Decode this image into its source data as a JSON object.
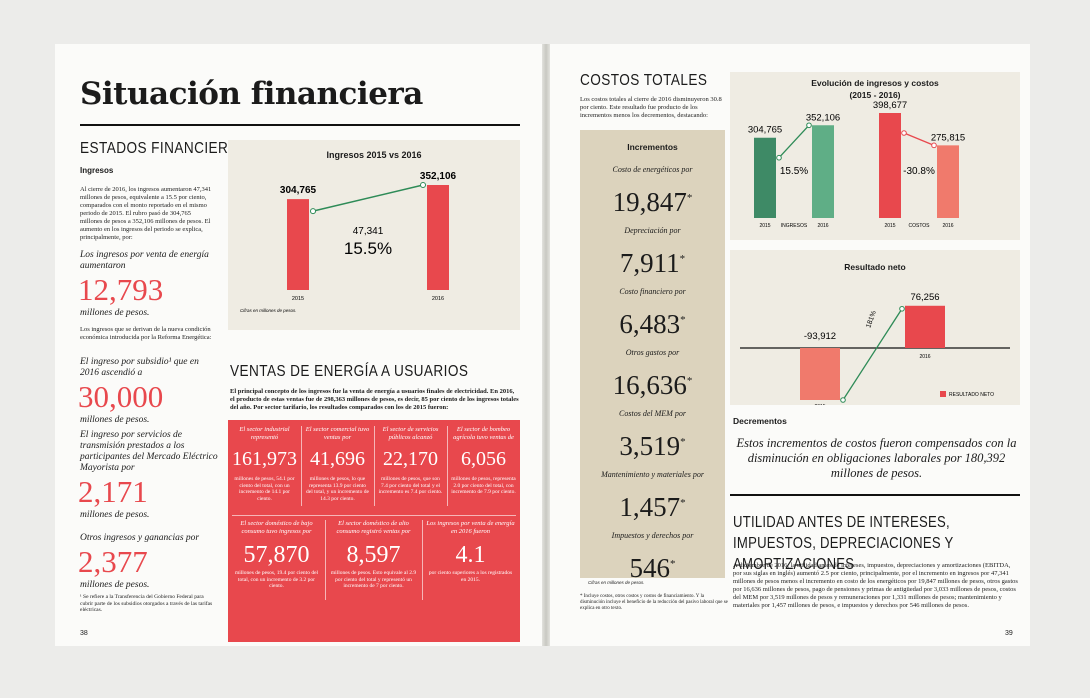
{
  "left_page": {
    "title": "Situación financiera",
    "section": "ESTADOS FINANCIEROS",
    "subhead": "Ingresos",
    "intro": "Al cierre de 2016, los ingresos aumentaron 47,341 millones de pesos, equivalente a 15.5 por ciento, comparados con el monto reportado en el mismo periodo de 2015. El rubro pasó de 304,765 millones de pesos a 352,106 millones de pesos. El aumento en los ingresos del periodo se explica, principalmente, por:",
    "text2": "Los ingresos que se derivan de la nueva condición económica introducida por la Reforma Energética:",
    "stats": [
      {
        "label": "Los ingresos por venta de energía aumentaron",
        "value": "12,793",
        "unit": "millones de pesos."
      },
      {
        "label": "El ingreso por subsidio¹ que en 2016 ascendió a",
        "value": "30,000",
        "unit": "millones de pesos."
      },
      {
        "label": "El ingreso por servicios de transmisión prestados a los participantes del Mercado Eléctrico Mayorista por",
        "value": "2,171",
        "unit": "millones de pesos."
      },
      {
        "label": "Otros ingresos y ganancias por",
        "value": "2,377",
        "unit": "millones de pesos."
      }
    ],
    "footnote": "¹ Se refiere a la Transferencia del Gobierno Federal para cubrir parte de los subsidios otorgados a través de las tarifas eléctricas.",
    "page_number": "38",
    "chart": {
      "type": "bar",
      "title": "Ingresos 2015 vs 2016",
      "categories": [
        "2015",
        "2016"
      ],
      "values": [
        304765,
        352106
      ],
      "value_labels": [
        "304,765",
        "352,106"
      ],
      "color": "#e8484d",
      "difference": "47,341",
      "percent": "15.5%",
      "note": "Cifras en millones de pesos."
    },
    "ventas": {
      "heading": "VENTAS DE ENERGÍA A USUARIOS",
      "text": "El principal concepto de los ingresos fue la venta de energía a usuarios finales de electricidad. En 2016, el producto de estas ventas fue de 298,363 millones de pesos, es decir, 85 por ciento de los ingresos totales del año. Por sector tarifario, los resultados comparados con los de 2015 fueron:",
      "cells": [
        {
          "label": "El sector industrial representó",
          "value": "161,973",
          "desc": "millones de pesos, 54.1 por ciento del total, con un incremento de 14.1 por ciento."
        },
        {
          "label": "El sector comercial tuvo ventas por",
          "value": "41,696",
          "desc": "millones de pesos, lo que representa 13.9 por ciento del total, y un incremento de 14.3 por ciento."
        },
        {
          "label": "El sector de servicios públicos alcanzó",
          "value": "22,170",
          "desc": "millones de pesos, que son 7.4 por ciento del total y el incremento es 7.4 por ciento."
        },
        {
          "label": "El sector de bombeo agrícola tuvo ventas de",
          "value": "6,056",
          "desc": "millones de pesos, representa 2.0 por ciento del total, con incremento de 7.9 por ciento."
        },
        {
          "label": "El sector doméstico de bajo consumo tuvo ingresos por",
          "value": "57,870",
          "desc": "millones de pesos, 19.4 por ciento del total, con un incremento de 3.2 por ciento."
        },
        {
          "label": "El sector doméstico de alto consumo registró ventas por",
          "value": "8,597",
          "desc": "millones de pesos. Esto equivale al 2.9 por ciento del total y representó un incremento de 7 por ciento."
        },
        {
          "label": "Los ingresos por venta de energía en 2016 fueron",
          "value": "4.1",
          "desc": "por ciento superiores a los registrados en 2015."
        }
      ]
    }
  },
  "right_page": {
    "section": "COSTOS TOTALES",
    "intro": "Los costos totales al cierre de 2016 disminuyeron 30.8 por ciento. Este resultado fue producto de los incrementos menos los decrementos, destacando:",
    "increments": {
      "title": "Incrementos",
      "mark": "*",
      "items": [
        {
          "label": "Costo de energéticos por",
          "value": "19,847"
        },
        {
          "label": "Depreciación por",
          "value": "7,911"
        },
        {
          "label": "Costo financiero por",
          "value": "6,483"
        },
        {
          "label": "Otros gastos por",
          "value": "16,636"
        },
        {
          "label": "Costos del MEM por",
          "value": "3,519"
        },
        {
          "label": "Mantenimiento y materiales por",
          "value": "1,457"
        },
        {
          "label": "Impuestos y derechos por",
          "value": "546"
        }
      ],
      "note": "Cifras en millones de pesos."
    },
    "footnote": "* Incluye costos, otros costos y costos de financiamiento. Y la disminución incluye el beneficio de la reducción del pasivo laboral que se explica en otro texto.",
    "evolution_chart": {
      "type": "bar",
      "title": "Evolución de ingresos y costos",
      "subtitle": "(2015 - 2016)",
      "groups": [
        {
          "name": "INGRESOS",
          "categories": [
            "2015",
            "2016"
          ],
          "values": [
            304765,
            352106
          ],
          "value_labels": [
            "304,765",
            "352,106"
          ],
          "colors": [
            "#3e8a66",
            "#5fae86"
          ],
          "percent": "15.5%"
        },
        {
          "name": "COSTOS",
          "categories": [
            "2015",
            "2016"
          ],
          "values": [
            398677,
            275815
          ],
          "value_labels": [
            "398,677",
            "275,815"
          ],
          "colors": [
            "#e8484d",
            "#f07a6c"
          ],
          "percent": "-30.8%"
        }
      ]
    },
    "net_chart": {
      "type": "bar",
      "title": "Resultado neto",
      "categories": [
        "2015",
        "2016"
      ],
      "values": [
        -93912,
        76256
      ],
      "value_labels": [
        "-93,912",
        "76,256"
      ],
      "colors": [
        "#f07a6c",
        "#e8484d"
      ],
      "percent": "181%",
      "legend": "RESULTADO NETO"
    },
    "decrements": {
      "title": "Decrementos",
      "text": "Estos incrementos de costos fueron compensados con la disminución en obligaciones laborales por 180,392 millones de pesos."
    },
    "ebitda": {
      "heading": "UTILIDAD ANTES DE INTERESES, IMPUESTOS, DEPRECIACIONES Y AMORTIZACIONES",
      "text": "A diciembre de 2016, la utilidad antes de intereses, impuestos, depreciaciones y amortizaciones (EBITDA, por sus siglas en inglés) aumentó 2.5 por ciento, principalmente, por el incremento en ingresos por 47,341 millones de pesos menos el incremento en costo de los energéticos por 19,847 millones de pesos, otros gastos por 16,636 millones de pesos, pago de pensiones y primas de antigüedad por 3,033 millones de pesos, costos del MEM por 3,519 millones de pesos y remuneraciones por 1,331 millones de pesos; mantenimiento y materiales por 1,457 millones de pesos, e impuestos y derechos por 546 millones de pesos."
    },
    "page_number": "39"
  }
}
